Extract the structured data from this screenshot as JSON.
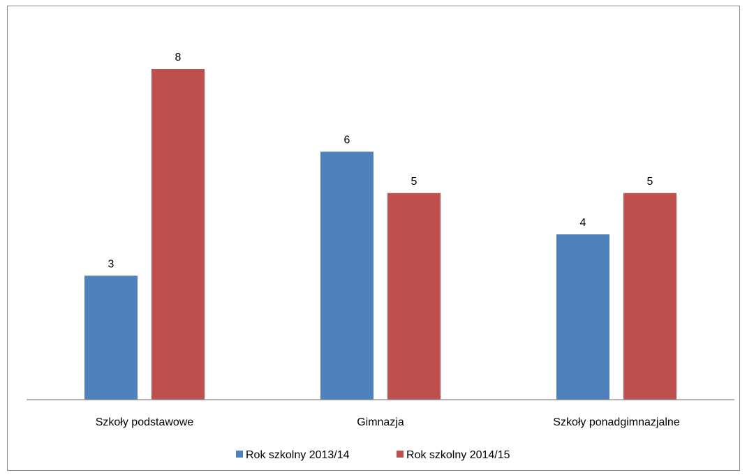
{
  "chart_data": {
    "type": "bar",
    "title": "",
    "xlabel": "",
    "ylabel": "",
    "categories": [
      "Szkoły podstawowe",
      "Gimnazja",
      "Szkoły ponadgimnazjalne"
    ],
    "series": [
      {
        "name": "Rok szkolny 2013/14",
        "values": [
          3,
          6,
          4
        ],
        "color": "#4F81BD"
      },
      {
        "name": "Rok szkolny 2014/15",
        "values": [
          8,
          5,
          5
        ],
        "color": "#C0504D"
      }
    ],
    "ylim": [
      0,
      8
    ],
    "grid": false,
    "data_labels": true,
    "legend_position": "bottom"
  }
}
